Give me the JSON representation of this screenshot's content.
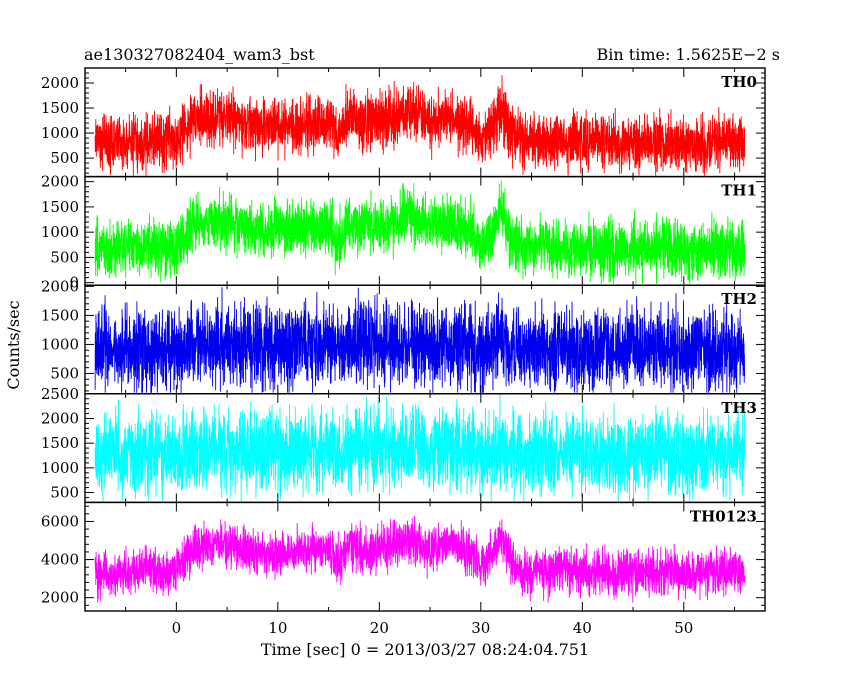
{
  "header": {
    "title": "ae130327082404_wam3_bst",
    "bin_time": "Bin time: 1.5625E−2 s"
  },
  "chart_data": {
    "type": "line",
    "title": "ae130327082404_wam3_bst",
    "bin_time": "Bin time: 1.5625E−2 s",
    "xlabel": "Time [sec] 0 = 2013/03/27 08:24:04.751",
    "ylabel": "Counts/sec",
    "xlim": [
      -9,
      58
    ],
    "x_ticks": [
      0,
      10,
      20,
      30,
      40,
      50
    ],
    "x_tick_labels": [
      "0",
      "10",
      "20",
      "30",
      "40",
      "50"
    ],
    "data_range": [
      -8,
      56
    ],
    "grid": false,
    "burst_profile": [
      [
        -8,
        0.0
      ],
      [
        0,
        0.05
      ],
      [
        1,
        0.35
      ],
      [
        2,
        0.7
      ],
      [
        4,
        0.8
      ],
      [
        7,
        0.6
      ],
      [
        9,
        0.45
      ],
      [
        12,
        0.55
      ],
      [
        15,
        0.6
      ],
      [
        16,
        0.25
      ],
      [
        17,
        0.7
      ],
      [
        19,
        0.55
      ],
      [
        21,
        0.7
      ],
      [
        23,
        0.9
      ],
      [
        25,
        0.6
      ],
      [
        27,
        0.75
      ],
      [
        29,
        0.5
      ],
      [
        30,
        0.1
      ],
      [
        31,
        0.4
      ],
      [
        32,
        1.0
      ],
      [
        33,
        0.3
      ],
      [
        34,
        0.05
      ],
      [
        56,
        0.0
      ]
    ],
    "series": [
      {
        "name": "TH0",
        "color": "#ff0000",
        "ylim": [
          130,
          2300
        ],
        "y_ticks": [
          500,
          1000,
          1500,
          2000
        ],
        "y_tick_labels": [
          "500",
          "1000",
          "1500",
          "2000"
        ],
        "base": 800,
        "burst": 700,
        "noise": 480
      },
      {
        "name": "TH1",
        "color": "#00ff00",
        "ylim": [
          -50,
          2100
        ],
        "y_ticks": [
          0,
          500,
          1000,
          1500,
          2000
        ],
        "y_tick_labels": [
          "0",
          "500",
          "1000",
          "1500",
          "2000"
        ],
        "base": 650,
        "burst": 750,
        "noise": 480
      },
      {
        "name": "TH2",
        "color": "#0000ee",
        "ylim": [
          150,
          2020
        ],
        "y_ticks": [
          500,
          1000,
          1500,
          2000
        ],
        "y_tick_labels": [
          "500",
          "1000",
          "1500",
          "2000"
        ],
        "base": 900,
        "burst": 150,
        "noise": 600
      },
      {
        "name": "TH3",
        "color": "#00ffff",
        "ylim": [
          300,
          2500
        ],
        "y_ticks": [
          500,
          1000,
          1500,
          2000,
          2500
        ],
        "y_tick_labels": [
          "500",
          "1000",
          "1500",
          "2000",
          "2500"
        ],
        "base": 1300,
        "burst": 120,
        "noise": 700
      },
      {
        "name": "TH0123",
        "color": "#ff00ff",
        "ylim": [
          1300,
          7000
        ],
        "y_ticks": [
          2000,
          4000,
          6000
        ],
        "y_tick_labels": [
          "2000",
          "4000",
          "6000"
        ],
        "base": 3300,
        "burst": 2000,
        "noise": 1000
      }
    ]
  }
}
